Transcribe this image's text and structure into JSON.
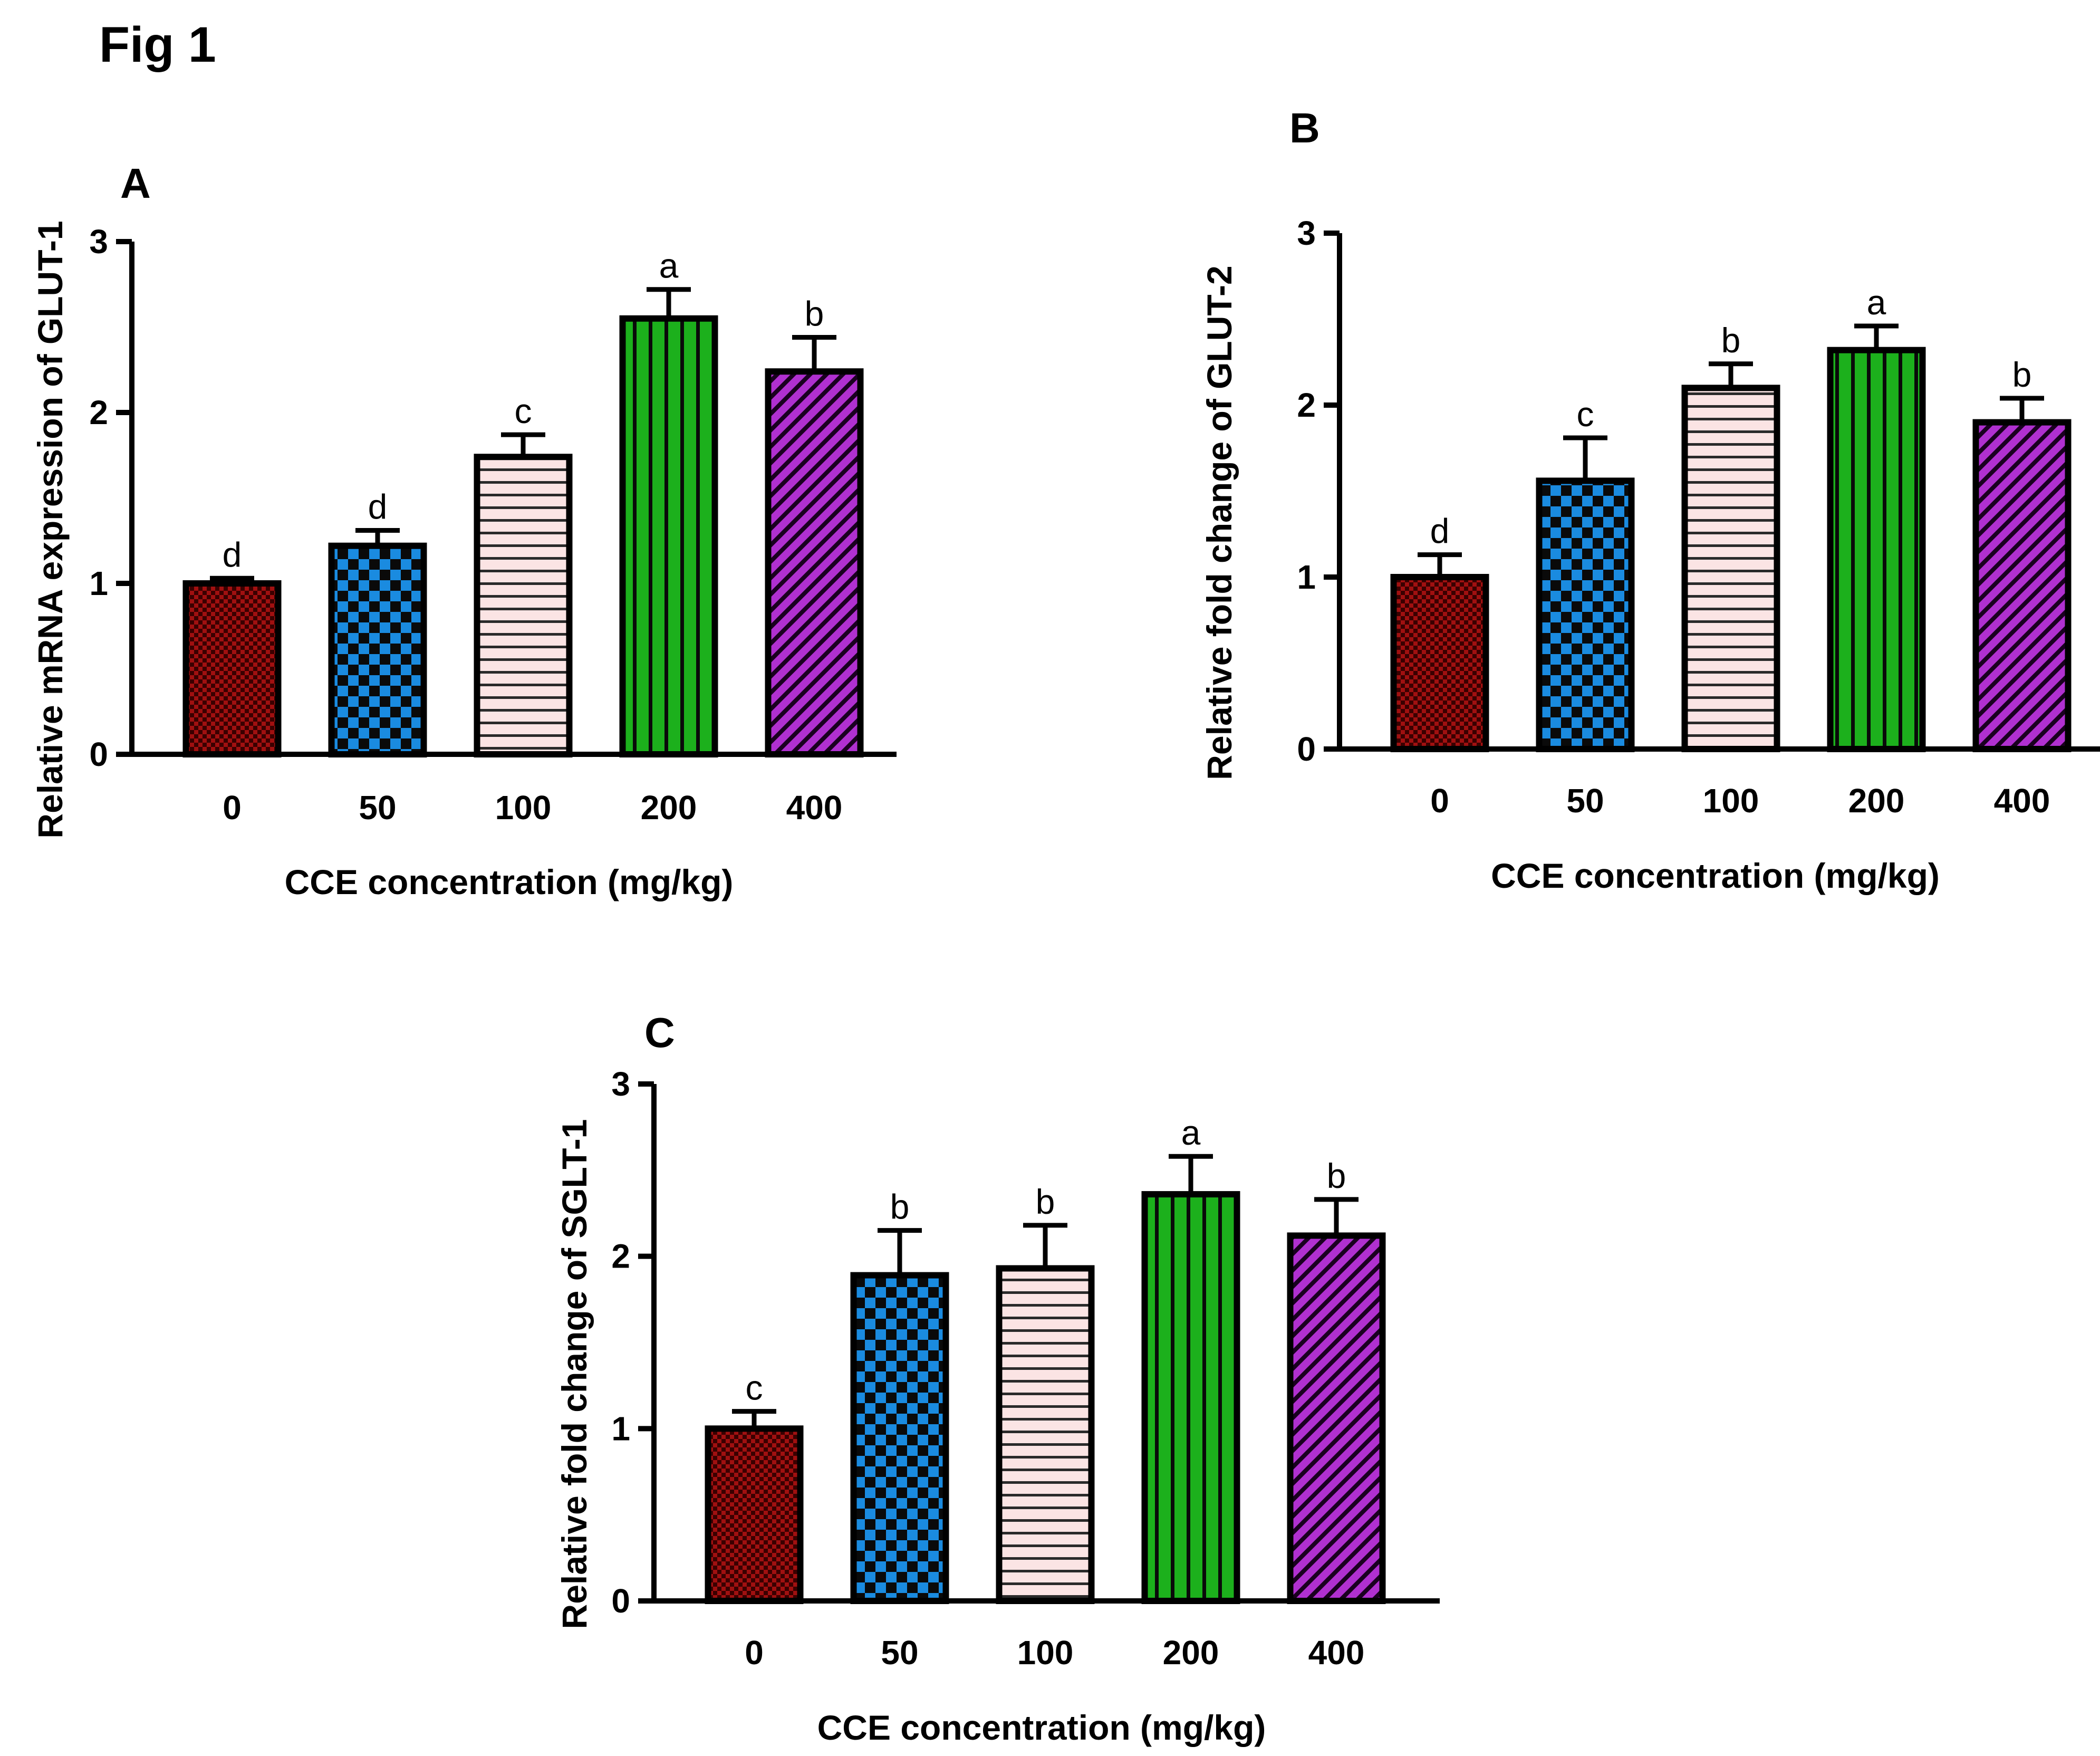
{
  "figure_title": "Fig 1",
  "chart_data": [
    {
      "panel": "A",
      "type": "bar",
      "xlabel": "CCE concentration (mg/kg)",
      "ylabel": "Relative mRNA expression of GLUT-1",
      "categories": [
        "0",
        "50",
        "100",
        "200",
        "400"
      ],
      "values": [
        1.0,
        1.22,
        1.74,
        2.55,
        2.24
      ],
      "errors": [
        0.03,
        0.09,
        0.13,
        0.17,
        0.2
      ],
      "significance": [
        "d",
        "d",
        "c",
        "a",
        "b"
      ],
      "ylim": [
        0,
        3
      ],
      "yticks": [
        "0",
        "1",
        "2",
        "3"
      ],
      "grid": false,
      "colors": [
        "#a01010",
        "#1a8be0",
        "#fbe4e4",
        "#1cb01c",
        "#b030d0"
      ],
      "patterns": [
        "fine-check",
        "checker",
        "horizontal-lines",
        "vertical-lines",
        "diagonal-lines"
      ]
    },
    {
      "panel": "B",
      "type": "bar",
      "xlabel": "CCE concentration (mg/kg)",
      "ylabel": "Relative fold change of GLUT-2",
      "categories": [
        "0",
        "50",
        "100",
        "200",
        "400"
      ],
      "values": [
        1.0,
        1.56,
        2.1,
        2.32,
        1.9
      ],
      "errors": [
        0.13,
        0.25,
        0.14,
        0.14,
        0.14
      ],
      "significance": [
        "d",
        "c",
        "b",
        "a",
        "b"
      ],
      "ylim": [
        0,
        3
      ],
      "yticks": [
        "0",
        "1",
        "2",
        "3"
      ],
      "grid": false,
      "colors": [
        "#a01010",
        "#1a8be0",
        "#fbe4e4",
        "#1cb01c",
        "#b030d0"
      ],
      "patterns": [
        "fine-check",
        "checker",
        "horizontal-lines",
        "vertical-lines",
        "diagonal-lines"
      ]
    },
    {
      "panel": "C",
      "type": "bar",
      "xlabel": "CCE concentration (mg/kg)",
      "ylabel": "Relative fold change of SGLT-1",
      "categories": [
        "0",
        "50",
        "100",
        "200",
        "400"
      ],
      "values": [
        1.0,
        1.89,
        1.93,
        2.36,
        2.12
      ],
      "errors": [
        0.1,
        0.26,
        0.25,
        0.22,
        0.21
      ],
      "significance": [
        "c",
        "b",
        "b",
        "a",
        "b"
      ],
      "ylim": [
        0,
        3
      ],
      "yticks": [
        "0",
        "1",
        "2",
        "3"
      ],
      "grid": false,
      "colors": [
        "#a01010",
        "#1a8be0",
        "#fbe4e4",
        "#1cb01c",
        "#b030d0"
      ],
      "patterns": [
        "fine-check",
        "checker",
        "horizontal-lines",
        "vertical-lines",
        "diagonal-lines"
      ]
    }
  ]
}
